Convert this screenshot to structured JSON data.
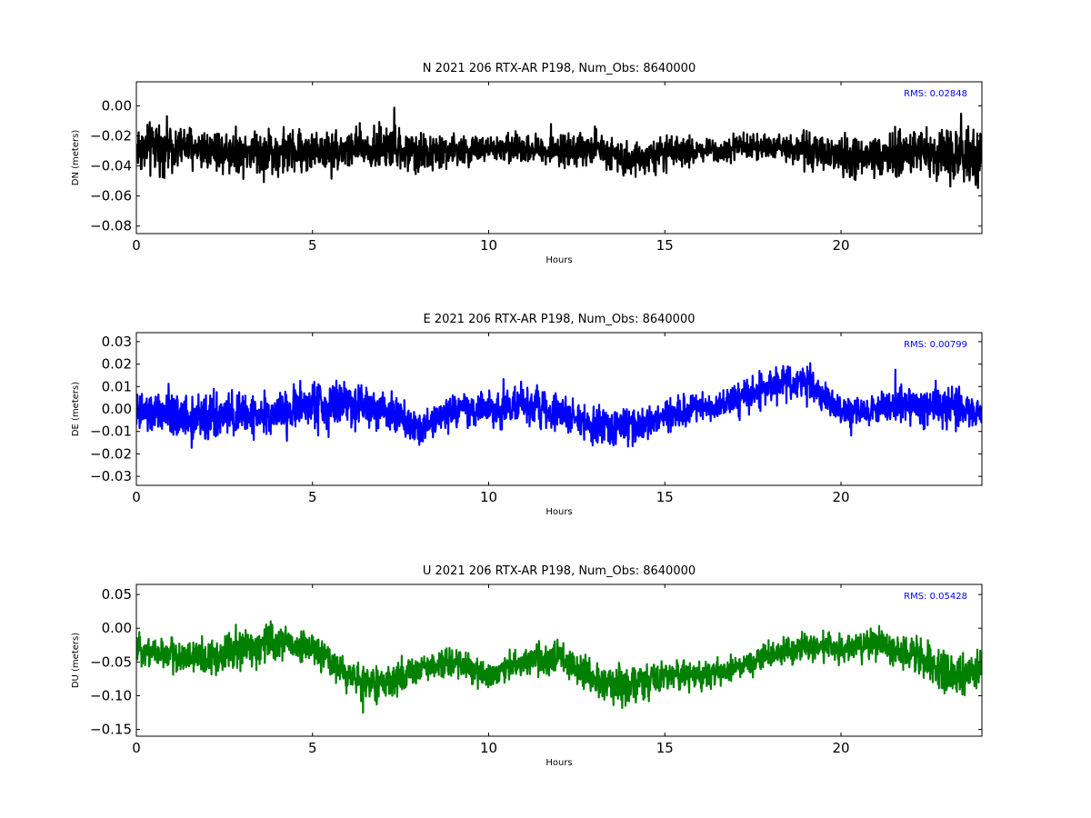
{
  "chart_data": [
    {
      "type": "line",
      "title": "N 2021 206 RTX-AR  P198, Num_Obs: 8640000",
      "xlabel": "Hours",
      "ylabel": "DN (meters)",
      "xlim": [
        0,
        24
      ],
      "ylim": [
        -0.085,
        0.016
      ],
      "xticks": [
        0,
        5,
        10,
        15,
        20
      ],
      "xtick_labels": [
        "0",
        "5",
        "10",
        "15",
        "20"
      ],
      "yticks": [
        0.0,
        -0.02,
        -0.04,
        -0.06,
        -0.08
      ],
      "ytick_labels": [
        "0.00",
        "−0.02",
        "−0.04",
        "−0.06",
        "−0.08"
      ],
      "annotation": "RMS:  0.02848",
      "annotation_color": "#0000ff",
      "series": [
        {
          "color": "#000000",
          "envelope": {
            "x": [
              0,
              1,
              2,
              3,
              4,
              5,
              6,
              7,
              8,
              9,
              10,
              11,
              12,
              13,
              14,
              15,
              16,
              17,
              18,
              19,
              20,
              21,
              22,
              23,
              24
            ],
            "mean": [
              -0.028,
              -0.027,
              -0.028,
              -0.03,
              -0.031,
              -0.03,
              -0.029,
              -0.028,
              -0.032,
              -0.03,
              -0.029,
              -0.028,
              -0.03,
              -0.028,
              -0.035,
              -0.032,
              -0.03,
              -0.028,
              -0.026,
              -0.03,
              -0.034,
              -0.036,
              -0.03,
              -0.032,
              -0.034
            ],
            "amp": [
              0.024,
              0.022,
              0.02,
              0.022,
              0.022,
              0.019,
              0.019,
              0.022,
              0.019,
              0.015,
              0.014,
              0.013,
              0.014,
              0.016,
              0.016,
              0.015,
              0.013,
              0.012,
              0.012,
              0.016,
              0.02,
              0.022,
              0.022,
              0.024,
              0.03
            ]
          }
        }
      ]
    },
    {
      "type": "line",
      "title": "E 2021 206 RTX-AR  P198, Num_Obs: 8640000",
      "xlabel": "Hours",
      "ylabel": "DE (meters)",
      "xlim": [
        0,
        24
      ],
      "ylim": [
        -0.034,
        0.034
      ],
      "xticks": [
        0,
        5,
        10,
        15,
        20
      ],
      "xtick_labels": [
        "0",
        "5",
        "10",
        "15",
        "20"
      ],
      "yticks": [
        0.03,
        0.02,
        0.01,
        0.0,
        -0.01,
        -0.02,
        -0.03
      ],
      "ytick_labels": [
        "0.03",
        "0.02",
        "0.01",
        "0.00",
        "−0.01",
        "−0.02",
        "−0.03"
      ],
      "annotation": "RMS:  0.00799",
      "annotation_color": "#0000ff",
      "series": [
        {
          "color": "#0000ff",
          "envelope": {
            "x": [
              0,
              1,
              2,
              3,
              4,
              5,
              6,
              7,
              8,
              9,
              10,
              11,
              12,
              13,
              14,
              15,
              16,
              17,
              18,
              19,
              20,
              21,
              22,
              23,
              24
            ],
            "mean": [
              -0.002,
              -0.003,
              -0.004,
              -0.003,
              -0.002,
              0.002,
              0.003,
              0.001,
              -0.008,
              -0.001,
              0.0,
              0.002,
              -0.002,
              -0.008,
              -0.008,
              -0.004,
              0.0,
              0.004,
              0.01,
              0.013,
              -0.002,
              0.0,
              0.002,
              0.002,
              -0.002
            ],
            "amp": [
              0.013,
              0.014,
              0.015,
              0.014,
              0.012,
              0.016,
              0.016,
              0.013,
              0.01,
              0.01,
              0.011,
              0.013,
              0.011,
              0.012,
              0.012,
              0.011,
              0.01,
              0.011,
              0.011,
              0.012,
              0.009,
              0.009,
              0.012,
              0.013,
              0.012
            ]
          }
        }
      ]
    },
    {
      "type": "line",
      "title": "U 2021 206 RTX-AR  P198, Num_Obs: 8640000",
      "xlabel": "Hours",
      "ylabel": "DU (meters)",
      "xlim": [
        0,
        24
      ],
      "ylim": [
        -0.16,
        0.065
      ],
      "xticks": [
        0,
        5,
        10,
        15,
        20
      ],
      "xtick_labels": [
        "0",
        "5",
        "10",
        "15",
        "20"
      ],
      "yticks": [
        0.05,
        0.0,
        -0.05,
        -0.1,
        -0.15
      ],
      "ytick_labels": [
        "0.05",
        "0.00",
        "−0.05",
        "−0.10",
        "−0.15"
      ],
      "annotation": "RMS:  0.05428",
      "annotation_color": "#0000ff",
      "series": [
        {
          "color": "#008000",
          "envelope": {
            "x": [
              0,
              1,
              2,
              3,
              4,
              5,
              6,
              7,
              8,
              9,
              10,
              11,
              12,
              13,
              14,
              15,
              16,
              17,
              18,
              19,
              20,
              21,
              22,
              23,
              24
            ],
            "mean": [
              -0.03,
              -0.04,
              -0.045,
              -0.03,
              -0.02,
              -0.03,
              -0.07,
              -0.085,
              -0.06,
              -0.05,
              -0.07,
              -0.05,
              -0.04,
              -0.08,
              -0.09,
              -0.07,
              -0.07,
              -0.06,
              -0.04,
              -0.03,
              -0.03,
              -0.02,
              -0.04,
              -0.07,
              -0.06
            ],
            "amp": [
              0.03,
              0.035,
              0.04,
              0.045,
              0.04,
              0.03,
              0.035,
              0.035,
              0.03,
              0.03,
              0.03,
              0.03,
              0.035,
              0.035,
              0.045,
              0.035,
              0.03,
              0.03,
              0.03,
              0.03,
              0.03,
              0.035,
              0.04,
              0.05,
              0.04
            ]
          }
        }
      ]
    }
  ]
}
